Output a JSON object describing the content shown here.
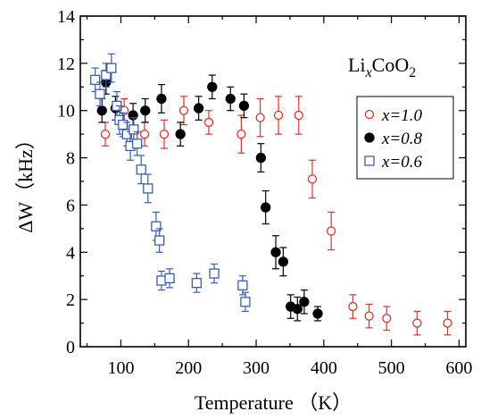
{
  "chart_data": {
    "type": "scatter",
    "xlabel": "Temperature （K）",
    "ylabel": "ΔW（kHz）",
    "xlim": [
      40,
      610
    ],
    "ylim": [
      0,
      14
    ],
    "x_ticks": [
      100,
      200,
      300,
      400,
      500,
      600
    ],
    "x_tick_labels": [
      "100",
      "200",
      "300",
      "400",
      "500",
      "600"
    ],
    "y_ticks": [
      0,
      2,
      4,
      6,
      8,
      10,
      12,
      14
    ],
    "y_tick_labels": [
      "0",
      "2",
      "4",
      "6",
      "8",
      "10",
      "12",
      "14"
    ],
    "annotation": {
      "base": "Li",
      "italic_sub": "x",
      "rest": "CoO",
      "sub": "2"
    },
    "legend_position": "top-right",
    "grid": false,
    "series": [
      {
        "name": "x=1.0",
        "marker": "open-circle",
        "color": "#e03030",
        "points": [
          [
            77,
            9.0,
            0.5
          ],
          [
            105,
            10.0,
            0.5
          ],
          [
            135,
            9.0,
            0.5
          ],
          [
            164,
            9.0,
            0.6
          ],
          [
            193,
            10.0,
            0.6
          ],
          [
            230,
            9.5,
            0.5
          ],
          [
            278,
            9.0,
            0.8
          ],
          [
            306,
            9.7,
            0.8
          ],
          [
            333,
            9.8,
            0.8
          ],
          [
            363,
            9.8,
            0.8
          ],
          [
            383,
            7.1,
            0.8
          ],
          [
            411,
            4.9,
            0.8
          ],
          [
            443,
            1.7,
            0.5
          ],
          [
            467,
            1.3,
            0.5
          ],
          [
            493,
            1.2,
            0.5
          ],
          [
            538,
            1.0,
            0.5
          ],
          [
            583,
            1.0,
            0.5
          ]
        ]
      },
      {
        "name": "x=0.8",
        "marker": "filled-circle",
        "color": "#000000",
        "points": [
          [
            72,
            10.0,
            0.5
          ],
          [
            78,
            11.2,
            0.5
          ],
          [
            92,
            10.1,
            0.5
          ],
          [
            118,
            9.8,
            0.5
          ],
          [
            136,
            10.0,
            0.5
          ],
          [
            160,
            10.5,
            0.6
          ],
          [
            188,
            9.0,
            0.5
          ],
          [
            215,
            10.1,
            0.5
          ],
          [
            235,
            11.0,
            0.5
          ],
          [
            262,
            10.5,
            0.5
          ],
          [
            282,
            10.2,
            0.5
          ],
          [
            307,
            8.0,
            0.6
          ],
          [
            314,
            5.9,
            0.7
          ],
          [
            329,
            4.0,
            0.7
          ],
          [
            340,
            3.6,
            0.6
          ],
          [
            351,
            1.7,
            0.5
          ],
          [
            361,
            1.6,
            0.5
          ],
          [
            371,
            1.9,
            0.5
          ],
          [
            391,
            1.4,
            0.3
          ]
        ]
      },
      {
        "name": "x=0.6",
        "marker": "open-square",
        "color": "#3a5ea8",
        "points": [
          [
            62,
            11.3,
            0.5
          ],
          [
            69,
            10.7,
            0.5
          ],
          [
            78,
            11.5,
            0.5
          ],
          [
            86,
            11.8,
            0.6
          ],
          [
            94,
            10.2,
            0.6
          ],
          [
            98,
            9.6,
            0.6
          ],
          [
            103,
            9.4,
            0.5
          ],
          [
            109,
            9.0,
            0.5
          ],
          [
            114,
            8.5,
            0.6
          ],
          [
            119,
            9.2,
            0.5
          ],
          [
            124,
            8.6,
            0.5
          ],
          [
            130,
            7.5,
            0.6
          ],
          [
            140,
            6.7,
            0.6
          ],
          [
            152,
            5.1,
            0.6
          ],
          [
            157,
            4.5,
            0.5
          ],
          [
            160,
            2.8,
            0.4
          ],
          [
            172,
            2.9,
            0.4
          ],
          [
            212,
            2.7,
            0.4
          ],
          [
            238,
            3.1,
            0.4
          ],
          [
            280,
            2.6,
            0.4
          ],
          [
            284,
            1.9,
            0.4
          ]
        ]
      }
    ]
  }
}
